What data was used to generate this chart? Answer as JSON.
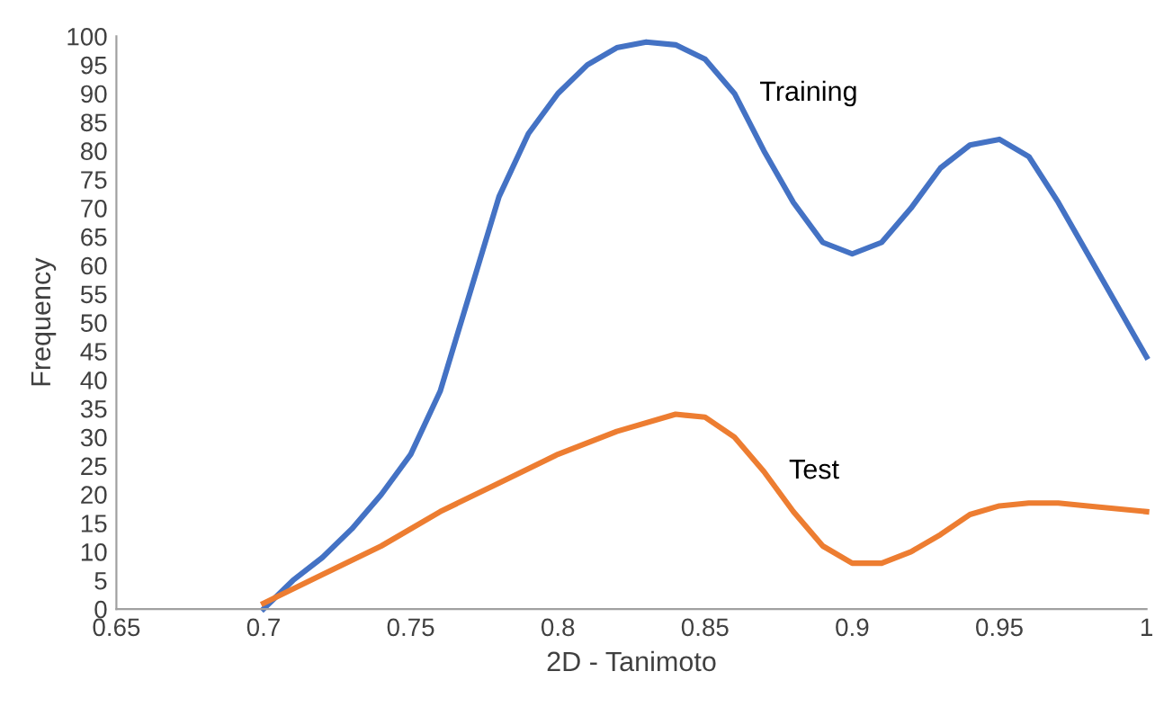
{
  "chart_data": {
    "type": "line",
    "xlabel": "2D - Tanimoto",
    "ylabel": "Frequency",
    "xlim": [
      0.65,
      1
    ],
    "ylim": [
      0,
      100
    ],
    "xticks": [
      0.65,
      0.7,
      0.75,
      0.8,
      0.85,
      0.9,
      0.95,
      1
    ],
    "yticks": [
      0,
      5,
      10,
      15,
      20,
      25,
      30,
      35,
      40,
      45,
      50,
      55,
      60,
      65,
      70,
      75,
      80,
      85,
      90,
      95,
      100
    ],
    "grid": false,
    "legend": false,
    "marker": "none",
    "line_style": "solid",
    "series": [
      {
        "name": "Training",
        "color": "#4472c4",
        "x": [
          0.7,
          0.71,
          0.72,
          0.73,
          0.74,
          0.75,
          0.76,
          0.77,
          0.78,
          0.79,
          0.8,
          0.81,
          0.82,
          0.83,
          0.84,
          0.85,
          0.86,
          0.87,
          0.88,
          0.89,
          0.9,
          0.91,
          0.92,
          0.93,
          0.94,
          0.95,
          0.96,
          0.97,
          0.98,
          0.99,
          1
        ],
        "values": [
          0,
          5,
          9,
          14,
          20,
          27,
          38,
          55,
          72,
          83,
          90,
          95,
          98,
          99,
          98.5,
          96,
          90,
          80,
          71,
          64,
          62,
          64,
          70,
          77,
          81,
          82,
          79,
          71,
          62,
          53,
          44
        ]
      },
      {
        "name": "Test",
        "color": "#ed7d31",
        "x": [
          0.7,
          0.72,
          0.74,
          0.76,
          0.78,
          0.8,
          0.82,
          0.84,
          0.85,
          0.86,
          0.87,
          0.88,
          0.89,
          0.9,
          0.91,
          0.92,
          0.93,
          0.94,
          0.95,
          0.96,
          0.97,
          0.98,
          1
        ],
        "values": [
          1,
          6,
          11,
          17,
          22,
          27,
          31,
          34,
          33.5,
          30,
          24,
          17,
          11,
          8,
          8,
          10,
          13,
          16.5,
          18,
          18.5,
          18.5,
          18,
          17
        ]
      }
    ]
  }
}
